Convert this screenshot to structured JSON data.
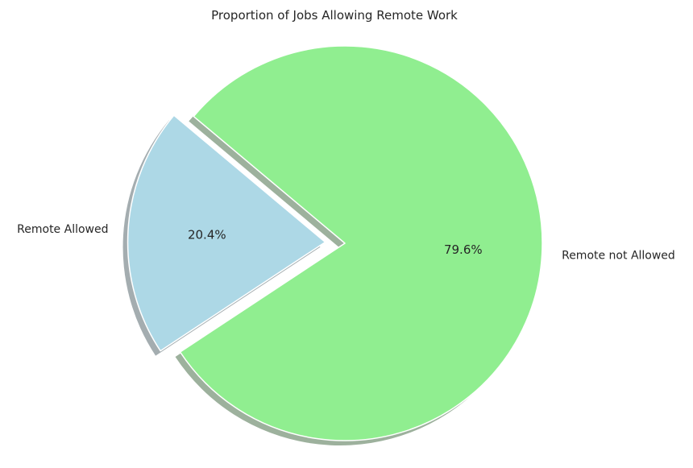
{
  "chart_data": {
    "type": "pie",
    "title": "Proportion of Jobs Allowing Remote Work",
    "slices": [
      {
        "label": "Remote Allowed",
        "value": 20.4,
        "pct_label": "20.4%",
        "color": "#add8e6",
        "explode": 0.1
      },
      {
        "label": "Remote not Allowed",
        "value": 79.6,
        "pct_label": "79.6%",
        "color": "#90ee90",
        "explode": 0
      }
    ],
    "start_angle_deg": 140,
    "shadow": true,
    "legend": "none"
  }
}
